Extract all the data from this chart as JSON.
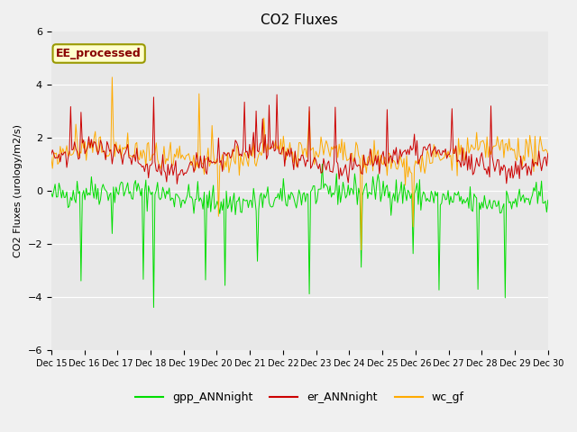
{
  "title": "CO2 Fluxes",
  "ylabel": "CO2 Fluxes (urology/m2/s)",
  "ylim": [
    -6,
    6
  ],
  "yticks": [
    -6,
    -4,
    -2,
    0,
    2,
    4,
    6
  ],
  "plot_bg_color": "#e8e8e8",
  "fig_bg_color": "#f0f0f0",
  "annotation_text": "EE_processed",
  "annotation_bg": "#ffffcc",
  "annotation_border": "#999900",
  "annotation_text_color": "#880000",
  "gpp_color": "#00dd00",
  "er_color": "#cc0000",
  "wc_color": "#ffaa00",
  "n_points": 384,
  "legend_gpp": "gpp_ANNnight",
  "legend_er": "er_ANNnight",
  "legend_wc": "wc_gf",
  "xtick_positions": [
    0,
    1,
    2,
    3,
    4,
    5,
    6,
    7,
    8,
    9,
    10,
    11,
    12,
    13,
    14,
    15
  ],
  "xtick_labels": [
    "Dec 15",
    "Dec 16",
    "Dec 17",
    "Dec 18",
    "Dec 19",
    "Dec 20",
    "Dec 21",
    "Dec 22",
    "Dec 23",
    "Dec 24",
    "Dec 25",
    "Dec 26",
    "Dec 27",
    "Dec 28",
    "Dec 29",
    "Dec 30"
  ],
  "seed": 42
}
